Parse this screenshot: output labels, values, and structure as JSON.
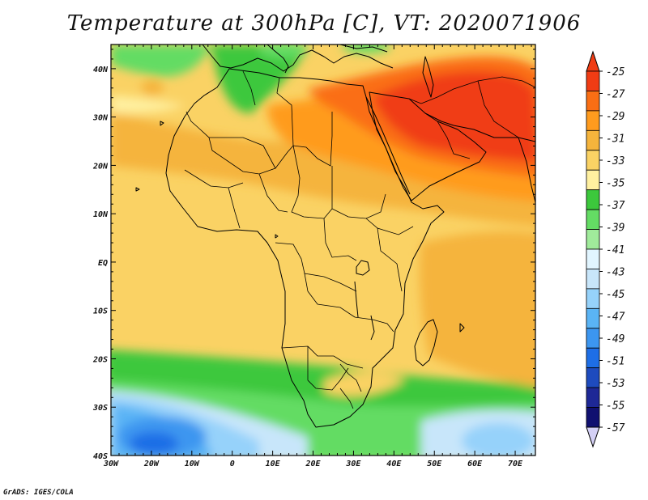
{
  "title": "Temperature at 300hPa [C], VT: 2020071906",
  "credit": "GrADS: IGES/COLA",
  "map": {
    "lon_range": [
      -30,
      75
    ],
    "lat_range": [
      -40,
      45
    ],
    "lon_ticks": [
      "30W",
      "20W",
      "10W",
      "0",
      "10E",
      "20E",
      "30E",
      "40E",
      "50E",
      "60E",
      "70E"
    ],
    "lat_ticks": [
      "40N",
      "30N",
      "20N",
      "10N",
      "EQ",
      "10S",
      "20S",
      "30S",
      "40S"
    ]
  },
  "colorbar": {
    "labels": [
      "-25",
      "-27",
      "-29",
      "-31",
      "-33",
      "-35",
      "-37",
      "-39",
      "-41",
      "-43",
      "-45",
      "-47",
      "-49",
      "-51",
      "-53",
      "-55",
      "-57"
    ],
    "colors": [
      "#f03c14",
      "#fa6e14",
      "#ff9b1e",
      "#f5b43c",
      "#fad264",
      "#fff0a0",
      "#3cc83c",
      "#64dc64",
      "#a0eb9b",
      "#e1f5ff",
      "#c8e6fa",
      "#96d2fa",
      "#5ab4f5",
      "#3c96f0",
      "#1e6ee6",
      "#1e4bbe",
      "#1e2896",
      "#101070"
    ],
    "top_arrow": "#f03c14",
    "bottom_arrow": "#d4d0f5"
  }
}
